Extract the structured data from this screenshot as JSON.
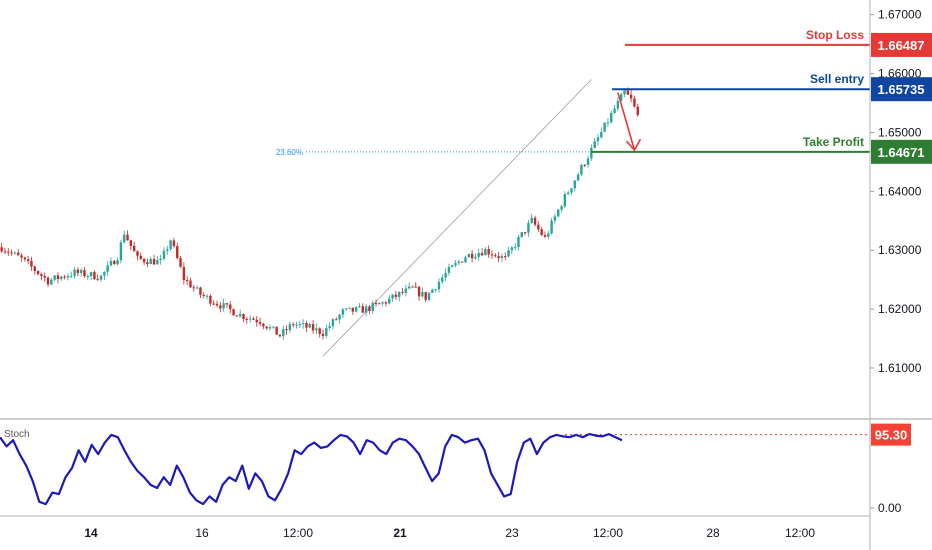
{
  "chart_data": {
    "type": "candlestick",
    "colors": {
      "up": "#26a69a",
      "down": "#c62828",
      "stop_loss": "#e53935",
      "sell_entry": "#0d47a1",
      "take_profit": "#2e7d32",
      "stoch_line": "#1c1ab8",
      "stoch_level": "#e53935",
      "fib": "#2196f3",
      "axis_text": "#131722",
      "panel_border": "#9e9e9e"
    },
    "y_axis": {
      "range": [
        1.6015,
        1.6725
      ],
      "ticks": [
        "1.61000",
        "1.62000",
        "1.63000",
        "1.64000",
        "1.65000",
        "1.66000",
        "1.67000"
      ]
    },
    "x_axis": {
      "ticks": [
        {
          "label": "14",
          "bold": true
        },
        {
          "label": "16",
          "bold": false
        },
        {
          "label": "12:00",
          "bold": false
        },
        {
          "label": "21",
          "bold": true
        },
        {
          "label": "23",
          "bold": false
        },
        {
          "label": "12:00",
          "bold": false
        },
        {
          "label": "28",
          "bold": false
        },
        {
          "label": "12:00",
          "bold": false
        }
      ]
    },
    "levels": [
      {
        "name": "Stop Loss",
        "value": 1.66487,
        "tag": "1.66487",
        "color": "#e53935"
      },
      {
        "name": "Sell entry",
        "value": 1.65735,
        "tag": "1.65735",
        "color": "#0d47a1"
      },
      {
        "name": "Take Profit",
        "value": 1.64671,
        "tag": "1.64671",
        "color": "#2e7d32"
      }
    ],
    "fib": {
      "label": "23.60%",
      "value": 1.6467
    },
    "price_path": [
      [
        0,
        1.6305
      ],
      [
        6,
        1.6285
      ],
      [
        14,
        1.6248
      ],
      [
        22,
        1.6262
      ],
      [
        30,
        1.6255
      ],
      [
        35,
        1.629
      ],
      [
        37,
        1.633
      ],
      [
        41,
        1.6285
      ],
      [
        48,
        1.628
      ],
      [
        51,
        1.6318
      ],
      [
        55,
        1.6252
      ],
      [
        60,
        1.6225
      ],
      [
        65,
        1.621
      ],
      [
        72,
        1.619
      ],
      [
        78,
        1.618
      ],
      [
        84,
        1.6155
      ],
      [
        88,
        1.6175
      ],
      [
        93,
        1.6168
      ],
      [
        97,
        1.616
      ],
      [
        103,
        1.6195
      ],
      [
        110,
        1.62
      ],
      [
        115,
        1.621
      ],
      [
        120,
        1.6225
      ],
      [
        124,
        1.6235
      ],
      [
        128,
        1.622
      ],
      [
        134,
        1.626
      ],
      [
        140,
        1.629
      ],
      [
        146,
        1.63
      ],
      [
        152,
        1.6285
      ],
      [
        155,
        1.631
      ],
      [
        160,
        1.635
      ],
      [
        164,
        1.632
      ],
      [
        169,
        1.638
      ],
      [
        173,
        1.642
      ],
      [
        177,
        1.646
      ],
      [
        181,
        1.65
      ],
      [
        185,
        1.654
      ],
      [
        188,
        1.6568
      ],
      [
        190,
        1.6555
      ],
      [
        192,
        1.6528
      ]
    ],
    "stoch": {
      "label": "Stoch",
      "current": "95.30",
      "level": 95.3,
      "ticks": [
        "0.00"
      ],
      "values": [
        92,
        80,
        88,
        70,
        55,
        35,
        8,
        5,
        20,
        18,
        40,
        52,
        75,
        60,
        82,
        70,
        85,
        95,
        92,
        75,
        60,
        48,
        40,
        30,
        26,
        40,
        30,
        55,
        40,
        20,
        10,
        5,
        15,
        8,
        30,
        40,
        35,
        55,
        25,
        45,
        35,
        15,
        10,
        25,
        45,
        75,
        70,
        80,
        85,
        78,
        80,
        88,
        95,
        93,
        85,
        70,
        88,
        85,
        75,
        70,
        85,
        90,
        88,
        80,
        70,
        52,
        35,
        45,
        80,
        95,
        92,
        85,
        88,
        90,
        75,
        45,
        30,
        15,
        18,
        60,
        85,
        90,
        70,
        85,
        92,
        95,
        93,
        92,
        95,
        92,
        96,
        94,
        93,
        96,
        92,
        88
      ]
    },
    "annotations": {
      "trend_line": [
        [
          97,
          1.612
        ],
        [
          178,
          1.659
        ]
      ],
      "arrow": {
        "from": [
          186,
          1.6568
        ],
        "to": [
          191,
          1.647
        ]
      }
    }
  }
}
